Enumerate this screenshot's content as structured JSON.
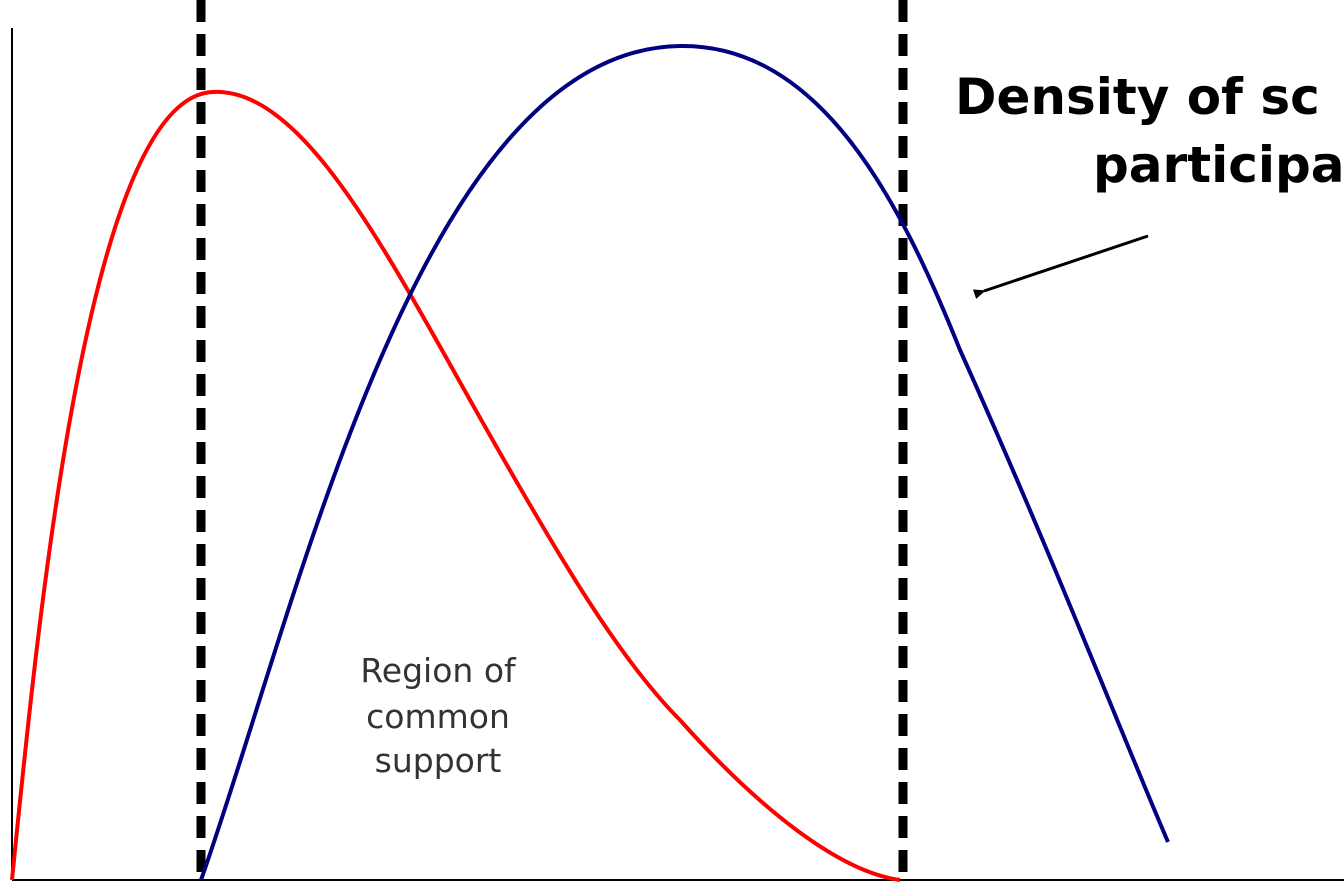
{
  "annotation": {
    "lines": [
      "Density of sc",
      "participa"
    ]
  },
  "region_label": {
    "lines": [
      "Region of",
      "common",
      "support"
    ]
  }
}
